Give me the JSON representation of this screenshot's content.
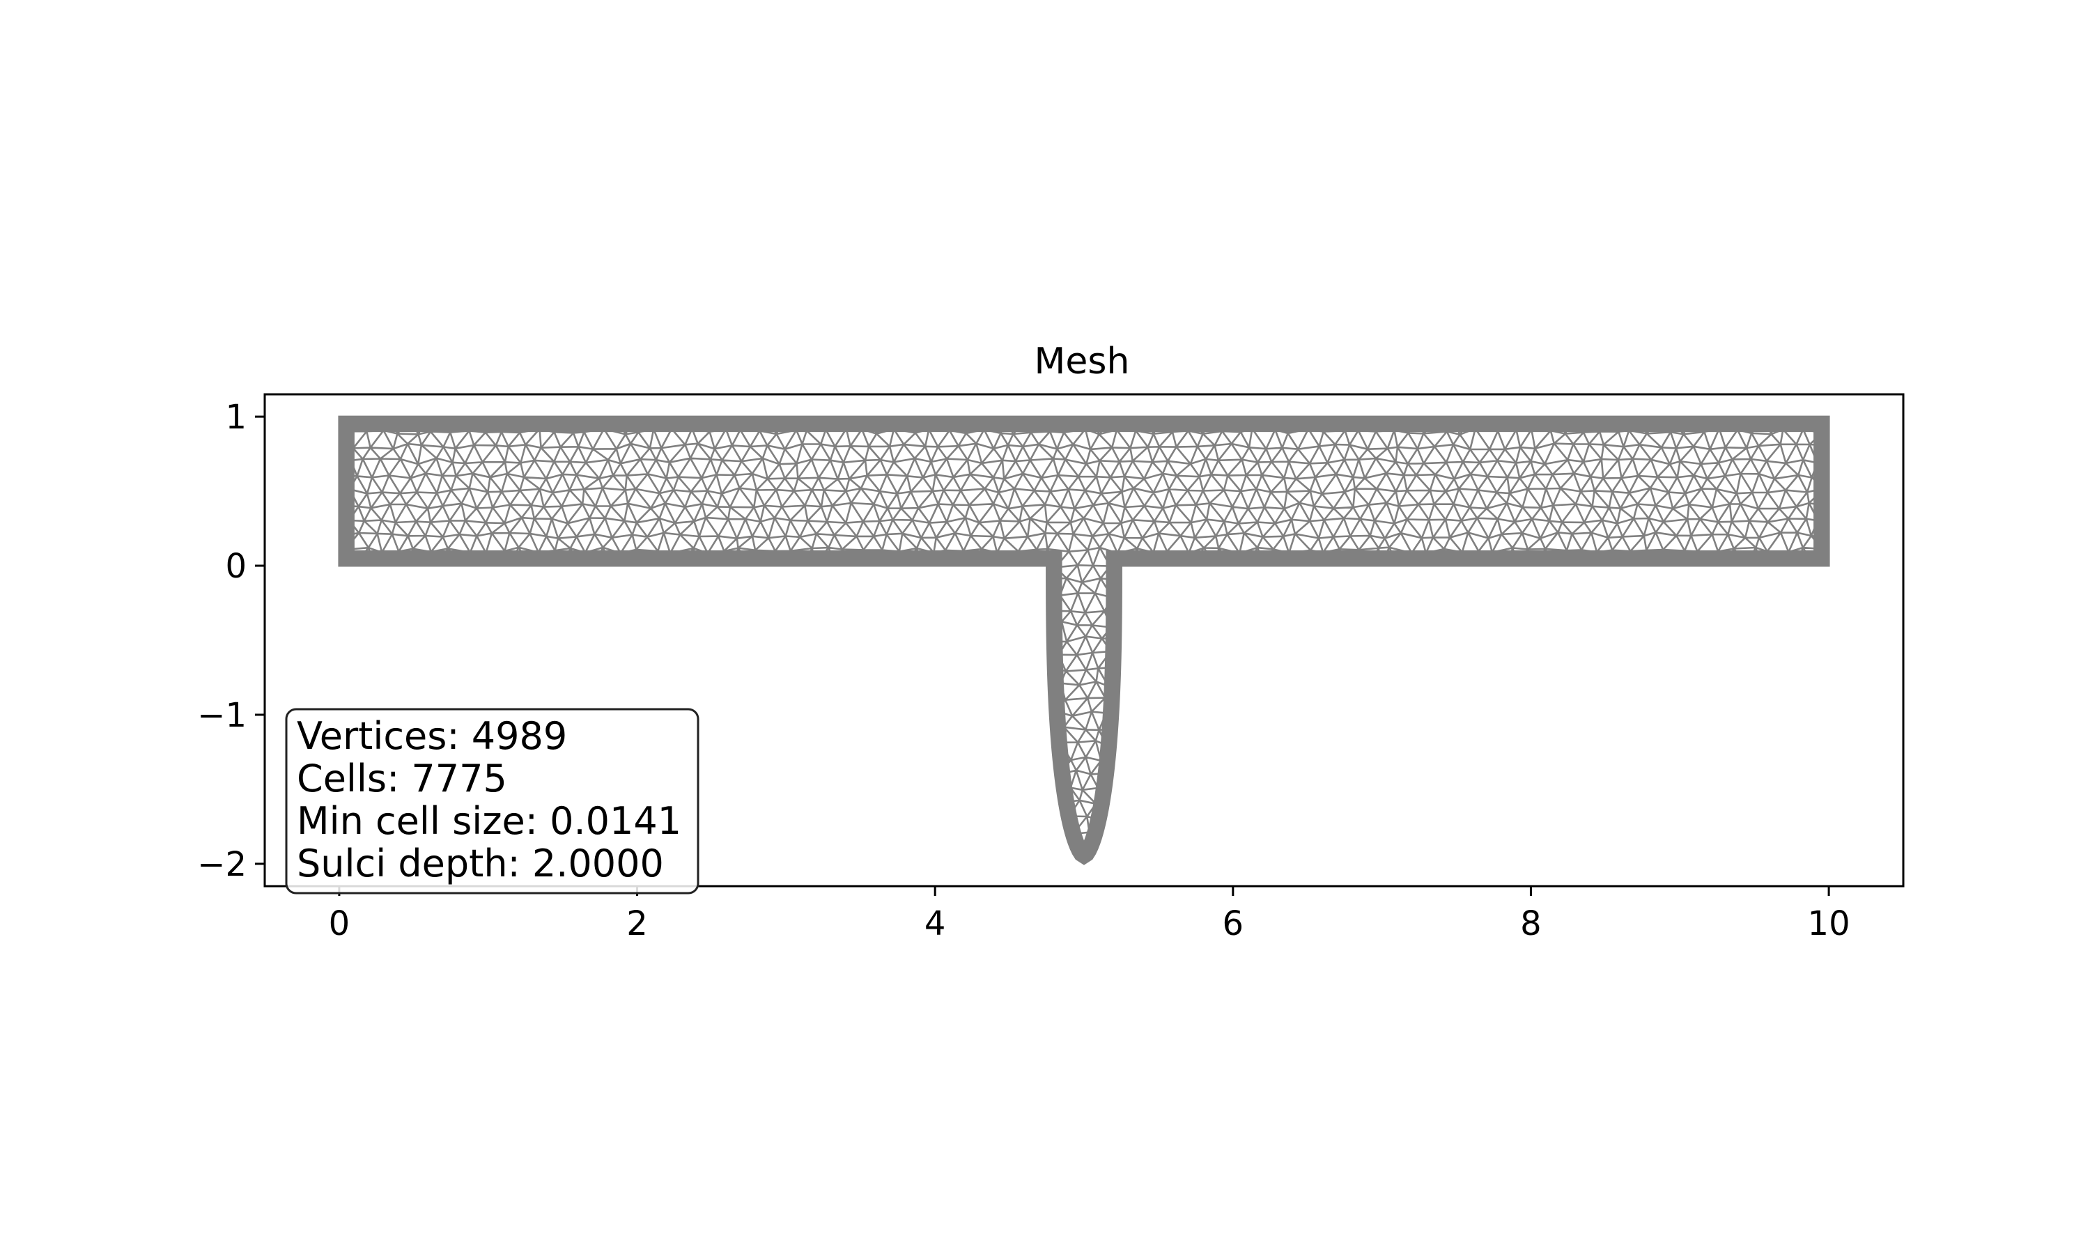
{
  "chart_data": {
    "type": "mesh",
    "title": "Mesh",
    "xlabel": "",
    "ylabel": "",
    "xlim": [
      -0.5,
      10.5
    ],
    "ylim": [
      -2.15,
      1.15
    ],
    "xticks": [
      0,
      2,
      4,
      6,
      8,
      10
    ],
    "xtick_labels": [
      "0",
      "2",
      "4",
      "6",
      "8",
      "10"
    ],
    "yticks": [
      1,
      0,
      -1,
      -2
    ],
    "ytick_labels": [
      "1",
      "0",
      "−1",
      "−2"
    ],
    "grid": false,
    "mesh_color": "#808080",
    "domain": {
      "channel": {
        "x": [
          0,
          10
        ],
        "y": [
          0,
          1
        ]
      },
      "sulcus": {
        "center_x": 5.0,
        "half_width": 0.25,
        "depth": 2.0
      }
    },
    "info_box": {
      "placement": "lower-left",
      "lines": [
        "Vertices: 4989",
        "Cells: 7775",
        "Min cell size: 0.0141",
        "Sulci depth: 2.0000"
      ]
    }
  }
}
